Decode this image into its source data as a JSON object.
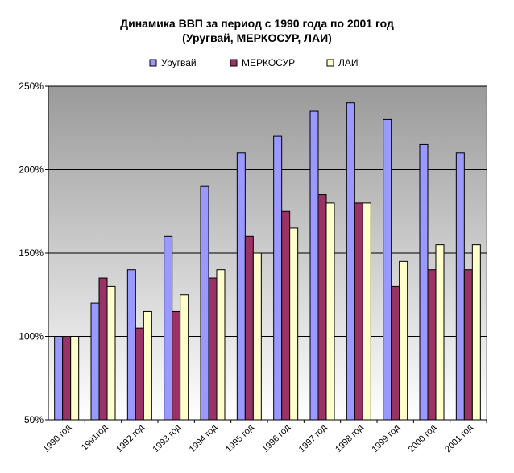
{
  "chart_data": {
    "type": "bar",
    "title": "Динамика ВВП за период с 1990 года по 2001 год",
    "subtitle": "(Уругвай, МЕРКОСУР, ЛАИ)",
    "categories": [
      "1990 год",
      "1991год",
      "1992 год",
      "1993 год",
      "1994 год",
      "1995 год",
      "1996 год",
      "1997 год",
      "1998 год",
      "1999 год",
      "2000 год",
      "2001 год"
    ],
    "series": [
      {
        "name": "Уругвай",
        "color": "#9999ff",
        "values": [
          100,
          120,
          140,
          160,
          190,
          210,
          220,
          235,
          240,
          230,
          215,
          210
        ]
      },
      {
        "name": "МЕРКОСУР",
        "color": "#993366",
        "values": [
          100,
          135,
          105,
          115,
          135,
          160,
          175,
          185,
          180,
          130,
          140,
          140
        ]
      },
      {
        "name": "ЛАИ",
        "color": "#ffffcc",
        "values": [
          100,
          130,
          115,
          125,
          140,
          150,
          165,
          180,
          180,
          145,
          155,
          155
        ]
      }
    ],
    "ylim": [
      50,
      250
    ],
    "yticks": [
      50,
      100,
      150,
      200,
      250
    ],
    "ytick_labels": [
      "50%",
      "100%",
      "150%",
      "200%",
      "250%"
    ],
    "grid": true,
    "legend_position": "top"
  }
}
